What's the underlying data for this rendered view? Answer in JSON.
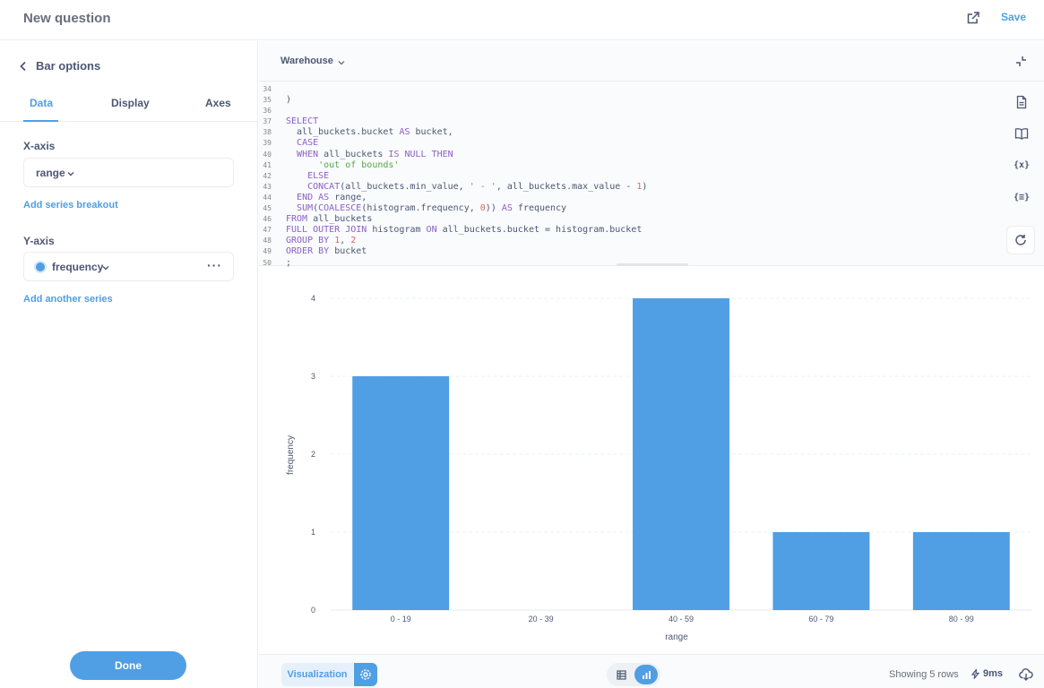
{
  "header": {
    "title": "New question",
    "save_label": "Save"
  },
  "sidebar": {
    "back_label": "Bar options",
    "tabs": [
      "Data",
      "Display",
      "Axes"
    ],
    "active_tab": "Data",
    "x_axis_label": "X-axis",
    "x_axis_value": "range",
    "add_breakout": "Add series breakout",
    "y_axis_label": "Y-axis",
    "y_axis_value": "frequency",
    "y_series_color": "#509EE3",
    "add_series": "Add another series",
    "done_label": "Done"
  },
  "editor": {
    "database": "Warehouse",
    "line_numbers": [
      "34",
      "35",
      "36",
      "37",
      "38",
      "39",
      "40",
      "41",
      "42",
      "43",
      "44",
      "45",
      "46",
      "47",
      "48",
      "49",
      "50"
    ],
    "tool_icons": [
      "document-icon",
      "book-icon",
      "variable-icon",
      "snippet-icon",
      "refresh-icon"
    ]
  },
  "chart_data": {
    "type": "bar",
    "categories": [
      "0 - 19",
      "20 - 39",
      "40 - 59",
      "60 - 79",
      "80 - 99"
    ],
    "values": [
      3,
      0,
      4,
      1,
      1
    ],
    "xlabel": "range",
    "ylabel": "frequency",
    "ylim": [
      0,
      4
    ],
    "yticks": [
      0,
      1,
      2,
      3,
      4
    ],
    "color": "#509EE3",
    "grid": true
  },
  "footer": {
    "visualization_label": "Visualization",
    "rows_text": "Showing 5 rows",
    "time_text": "9ms"
  }
}
